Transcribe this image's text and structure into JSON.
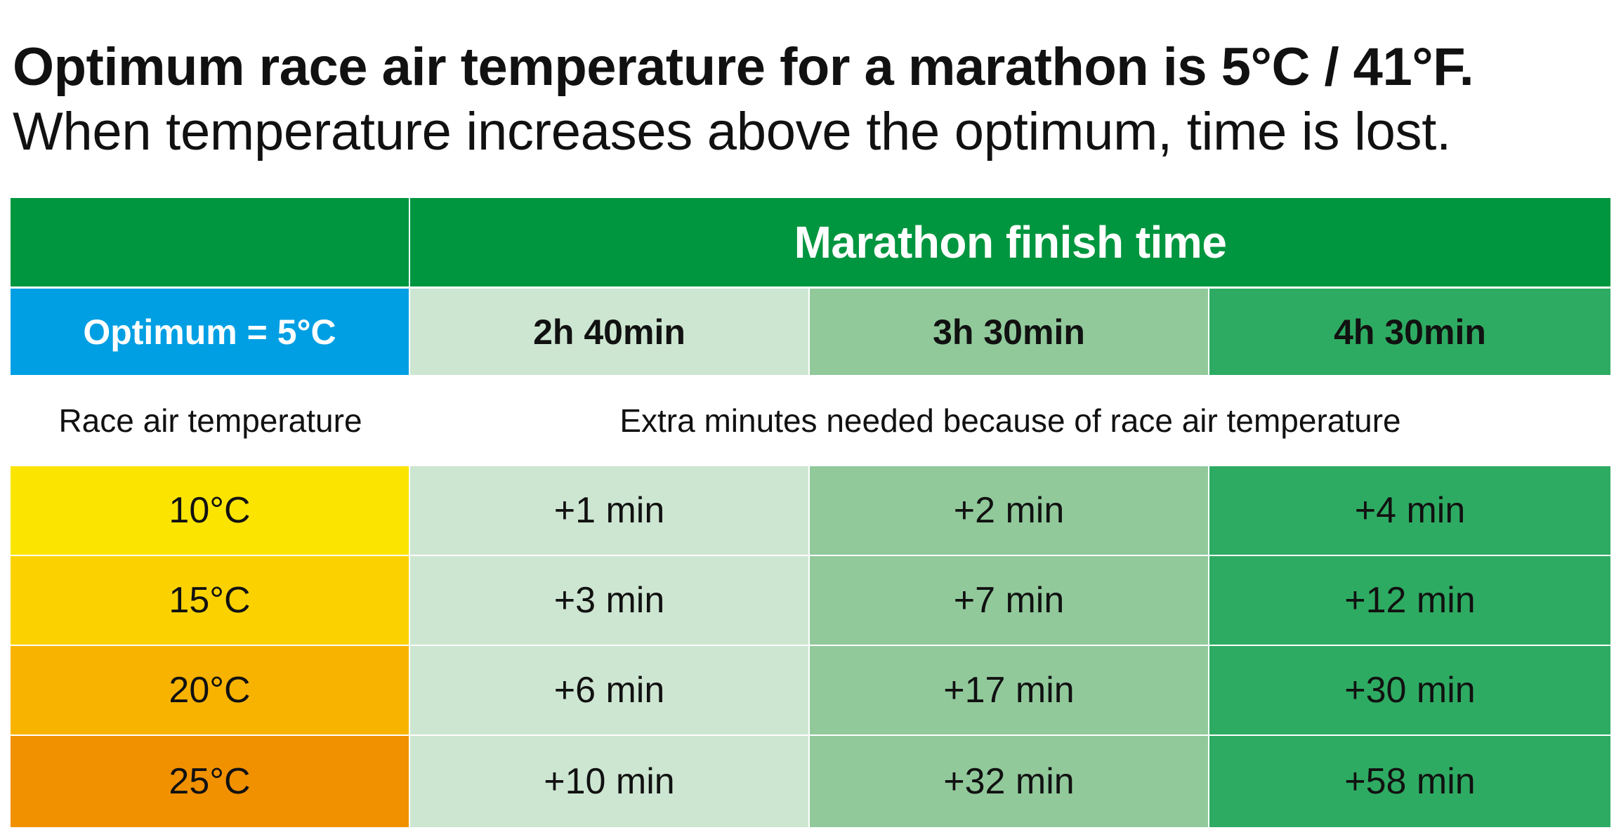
{
  "headline": {
    "line1": "Optimum race air temperature for a marathon is 5°C / 41°F.",
    "line2": "When temperature increases above the optimum, time is lost."
  },
  "table": {
    "header_title": "Marathon finish time",
    "optimum_label": "Optimum = 5°C",
    "finish_times": [
      "2h 40min",
      "3h 30min",
      "4h 30min"
    ],
    "row_label_header": "Race air temperature",
    "value_header": "Extra minutes needed because of race air temperature",
    "rows": [
      {
        "temperature": "10°C",
        "values": [
          "+1 min",
          "+2 min",
          "+4 min"
        ]
      },
      {
        "temperature": "15°C",
        "values": [
          "+3 min",
          "+7 min",
          "+12 min"
        ]
      },
      {
        "temperature": "20°C",
        "values": [
          "+6 min",
          "+17 min",
          "+30 min"
        ]
      },
      {
        "temperature": "25°C",
        "values": [
          "+10 min",
          "+32 min",
          "+58 min"
        ]
      }
    ]
  },
  "colors": {
    "header_green": "#00963f",
    "optimum_blue": "#009fe3",
    "column_1": "#cde6d1",
    "column_2": "#91c99b",
    "column_3": "#2eab62",
    "temp_10": "#fbe400",
    "temp_15": "#fbd200",
    "temp_20": "#f8b300",
    "temp_25": "#f19100"
  }
}
